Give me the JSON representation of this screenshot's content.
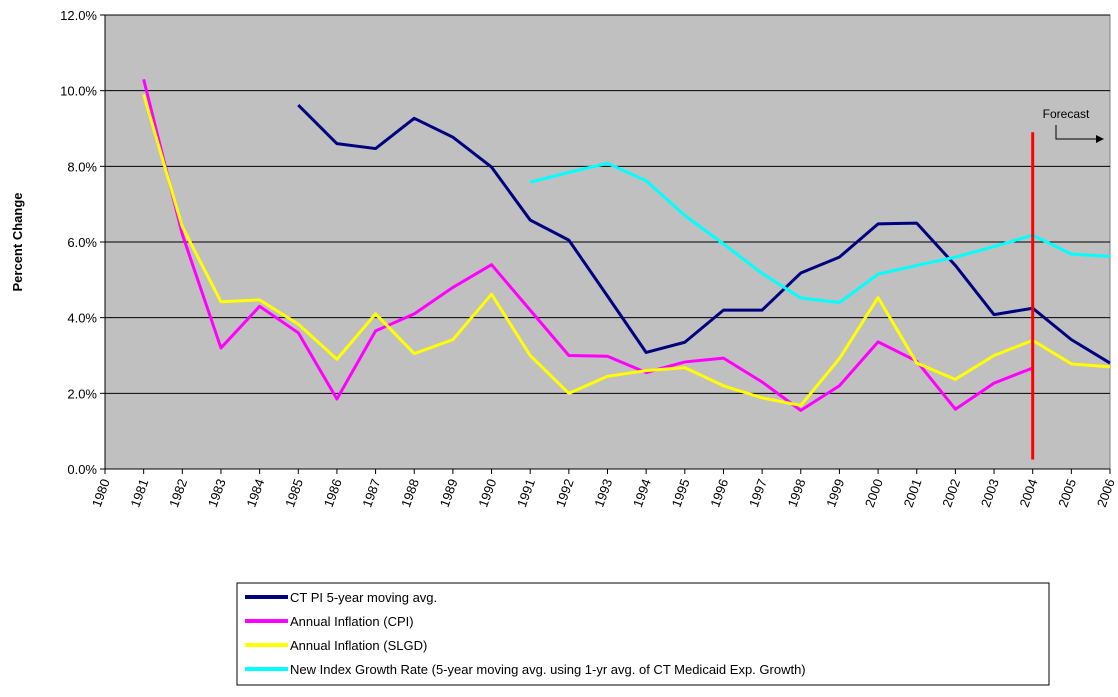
{
  "chart_data": {
    "type": "line",
    "y_label": "Percent Change",
    "x": [
      1981,
      1982,
      1983,
      1984,
      1985,
      1986,
      1987,
      1988,
      1989,
      1990,
      1991,
      1992,
      1993,
      1994,
      1995,
      1996,
      1997,
      1998,
      1999,
      2000,
      2001,
      2002,
      2003,
      2004,
      2005,
      2006
    ],
    "xlim": [
      1980,
      2006
    ],
    "xticks": [
      1980,
      1981,
      1982,
      1983,
      1984,
      1985,
      1986,
      1987,
      1988,
      1989,
      1990,
      1991,
      1992,
      1993,
      1994,
      1995,
      1996,
      1997,
      1998,
      1999,
      2000,
      2001,
      2002,
      2003,
      2004,
      2005,
      2006
    ],
    "ylim": [
      0,
      12
    ],
    "yticks": [
      {
        "value": 0,
        "label": "0.0%"
      },
      {
        "value": 2,
        "label": "2.0%"
      },
      {
        "value": 4,
        "label": "4.0%"
      },
      {
        "value": 6,
        "label": "6.0%"
      },
      {
        "value": 8,
        "label": "8.0%"
      },
      {
        "value": 10,
        "label": "10.0%"
      },
      {
        "value": 12,
        "label": "12.0%"
      }
    ],
    "grid": true,
    "series": [
      {
        "name": "CT PI 5-year moving avg.",
        "color": "#000080",
        "values": [
          null,
          null,
          null,
          null,
          9.62,
          8.6,
          8.47,
          9.27,
          8.77,
          7.98,
          6.58,
          6.05,
          4.57,
          3.08,
          3.35,
          4.2,
          4.2,
          5.18,
          5.6,
          6.48,
          6.5,
          5.38,
          4.08,
          4.25,
          3.42,
          2.8
        ]
      },
      {
        "name": "Annual Inflation (CPI)",
        "color": "#ff00ff",
        "values": [
          10.3,
          6.2,
          3.2,
          4.3,
          3.6,
          1.85,
          3.65,
          4.1,
          4.8,
          5.4,
          4.2,
          3.0,
          2.98,
          2.55,
          2.83,
          2.93,
          2.3,
          1.55,
          2.2,
          3.36,
          2.85,
          1.58,
          2.27,
          2.67,
          null,
          null
        ]
      },
      {
        "name": "Annual Inflation (SLGD)",
        "color": "#ffff00",
        "values": [
          9.9,
          6.4,
          4.42,
          4.47,
          3.83,
          2.9,
          4.1,
          3.05,
          3.42,
          4.62,
          3.0,
          2.0,
          2.45,
          2.6,
          2.68,
          2.2,
          1.88,
          1.68,
          2.92,
          4.53,
          2.8,
          2.37,
          3.0,
          3.4,
          2.78,
          2.7
        ]
      },
      {
        "name": "New Index Growth Rate (5-year moving avg. using 1-yr avg. of CT Medicaid Exp. Growth)",
        "color": "#00ffff",
        "values": [
          null,
          null,
          null,
          null,
          null,
          null,
          null,
          null,
          null,
          null,
          7.58,
          7.84,
          8.08,
          7.62,
          6.7,
          5.95,
          5.17,
          4.52,
          4.4,
          5.15,
          5.38,
          5.6,
          5.88,
          6.18,
          5.68,
          5.62
        ]
      }
    ],
    "forecast": {
      "label": "Forecast",
      "x": 2004,
      "y_from": 0.25,
      "y_to": 8.9,
      "color": "#ff0000"
    }
  }
}
